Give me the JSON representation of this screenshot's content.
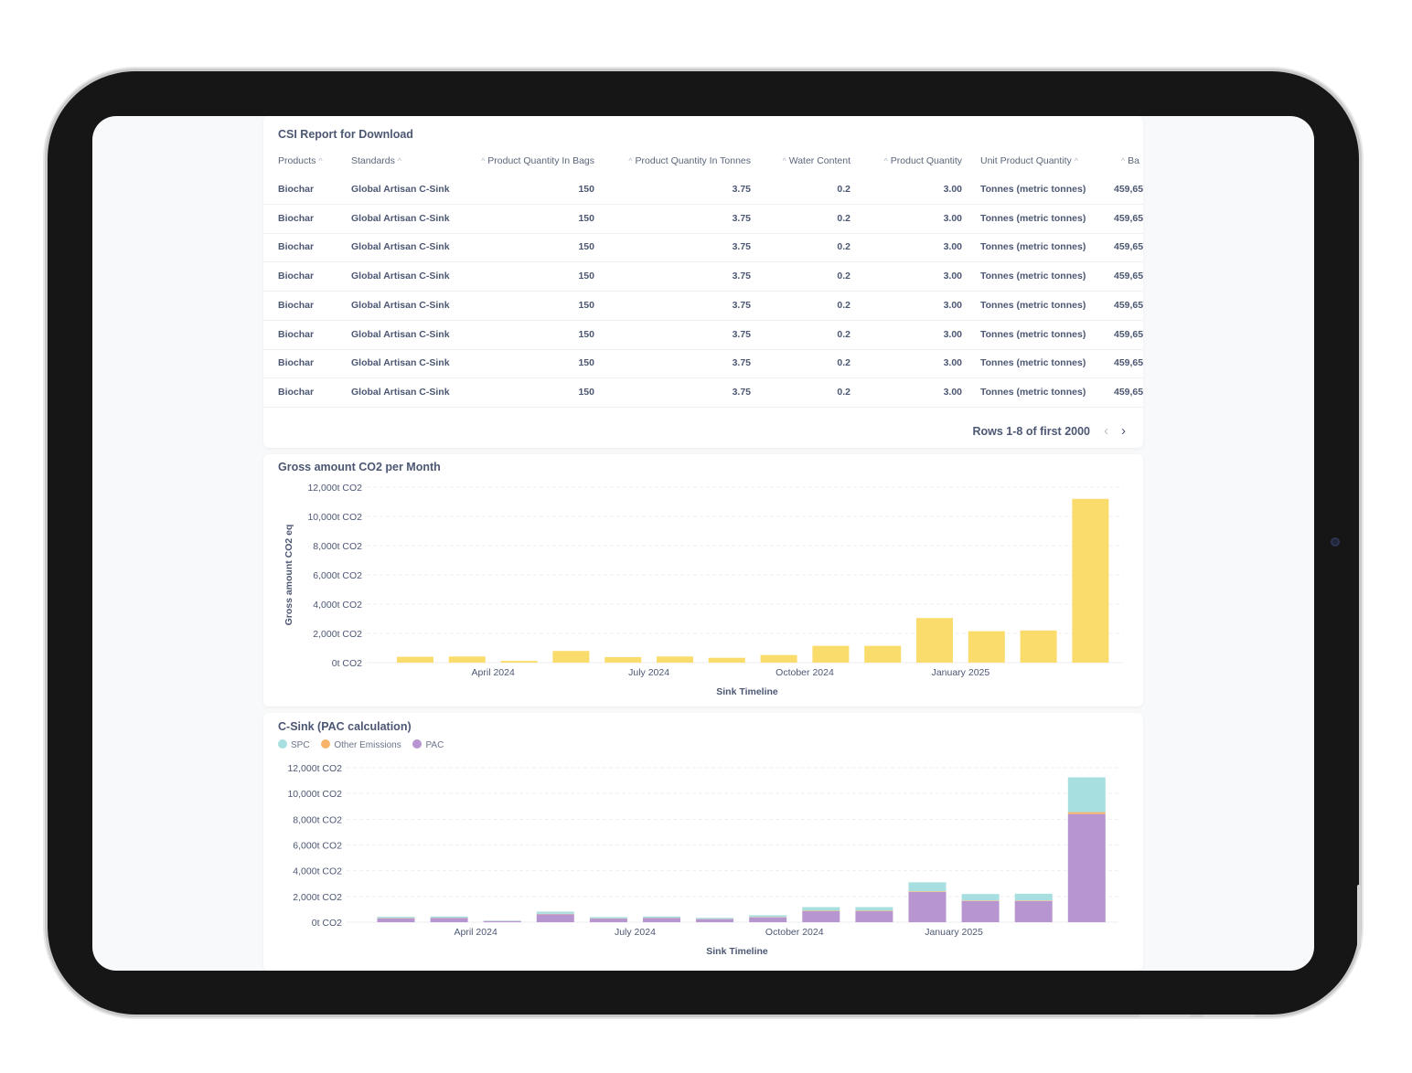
{
  "table": {
    "title": "CSI Report for Download",
    "columns": [
      {
        "label": "Products",
        "sort": "after"
      },
      {
        "label": "Standards",
        "sort": "after"
      },
      {
        "label": "Product Quantity In Bags",
        "sort": "before"
      },
      {
        "label": "Product Quantity In Tonnes",
        "sort": "before"
      },
      {
        "label": "Water Content",
        "sort": "before"
      },
      {
        "label": "Product Quantity",
        "sort": "before"
      },
      {
        "label": "Unit Product Quantity",
        "sort": "after"
      },
      {
        "label": "Ba",
        "sort": "before"
      }
    ],
    "rows": [
      [
        "Biochar",
        "Global Artisan C-Sink",
        "150",
        "3.75",
        "0.2",
        "3.00",
        "Tonnes (metric tonnes)",
        "459,65"
      ],
      [
        "Biochar",
        "Global Artisan C-Sink",
        "150",
        "3.75",
        "0.2",
        "3.00",
        "Tonnes (metric tonnes)",
        "459,65"
      ],
      [
        "Biochar",
        "Global Artisan C-Sink",
        "150",
        "3.75",
        "0.2",
        "3.00",
        "Tonnes (metric tonnes)",
        "459,65"
      ],
      [
        "Biochar",
        "Global Artisan C-Sink",
        "150",
        "3.75",
        "0.2",
        "3.00",
        "Tonnes (metric tonnes)",
        "459,65"
      ],
      [
        "Biochar",
        "Global Artisan C-Sink",
        "150",
        "3.75",
        "0.2",
        "3.00",
        "Tonnes (metric tonnes)",
        "459,65"
      ],
      [
        "Biochar",
        "Global Artisan C-Sink",
        "150",
        "3.75",
        "0.2",
        "3.00",
        "Tonnes (metric tonnes)",
        "459,65"
      ],
      [
        "Biochar",
        "Global Artisan C-Sink",
        "150",
        "3.75",
        "0.2",
        "3.00",
        "Tonnes (metric tonnes)",
        "459,65"
      ],
      [
        "Biochar",
        "Global Artisan C-Sink",
        "150",
        "3.75",
        "0.2",
        "3.00",
        "Tonnes (metric tonnes)",
        "459,65"
      ]
    ],
    "pagination": "Rows 1-8 of first 2000",
    "prev_icon": "chevron-left-icon",
    "next_icon": "chevron-right-icon"
  },
  "chart_data": [
    {
      "type": "bar",
      "title": "Gross amount CO2 per Month",
      "xlabel": "Sink Timeline",
      "ylabel": "Gross amount CO2 eq",
      "ylim": [
        0,
        12000
      ],
      "yticks": [
        "12,000t CO2",
        "10,000t CO2",
        "8,000t CO2",
        "6,000t CO2",
        "4,000t CO2",
        "2,000t CO2",
        "0t CO2"
      ],
      "xticks": [
        {
          "label": "April 2024",
          "between": [
            1,
            2
          ]
        },
        {
          "label": "July 2024",
          "between": [
            4,
            5
          ]
        },
        {
          "label": "October 2024",
          "between": [
            7,
            8
          ]
        },
        {
          "label": "January 2025",
          "between": [
            10,
            11
          ]
        }
      ],
      "grid": true,
      "color": "#f9dc6b",
      "values": [
        400,
        420,
        120,
        800,
        380,
        420,
        330,
        520,
        1150,
        1150,
        3050,
        2150,
        2200,
        11200
      ]
    },
    {
      "type": "bar",
      "stacked": true,
      "title": "C-Sink (PAC calculation)",
      "xlabel": "Sink Timeline",
      "ylim": [
        0,
        12000
      ],
      "yticks": [
        "12,000t CO2",
        "10,000t CO2",
        "8,000t CO2",
        "6,000t CO2",
        "4,000t CO2",
        "2,000t CO2",
        "0t CO2"
      ],
      "xticks": [
        {
          "label": "April 2024",
          "between": [
            1,
            2
          ]
        },
        {
          "label": "July 2024",
          "between": [
            4,
            5
          ]
        },
        {
          "label": "October 2024",
          "between": [
            7,
            8
          ]
        },
        {
          "label": "January 2025",
          "between": [
            10,
            11
          ]
        }
      ],
      "grid": true,
      "legend_position": "top-left",
      "series": [
        {
          "name": "PAC",
          "color": "#b695d1",
          "values": [
            300,
            320,
            90,
            620,
            280,
            320,
            240,
            380,
            850,
            850,
            2350,
            1650,
            1650,
            8400
          ]
        },
        {
          "name": "Other Emissions",
          "color": "#f7b36a",
          "values": [
            20,
            20,
            5,
            30,
            20,
            20,
            15,
            25,
            40,
            40,
            50,
            40,
            40,
            150
          ]
        },
        {
          "name": "SPC",
          "color": "#a7dfe0",
          "values": [
            100,
            100,
            30,
            170,
            100,
            100,
            85,
            135,
            280,
            280,
            700,
            500,
            520,
            2700
          ]
        }
      ],
      "legend_order": [
        "SPC",
        "Other Emissions",
        "PAC"
      ]
    }
  ]
}
